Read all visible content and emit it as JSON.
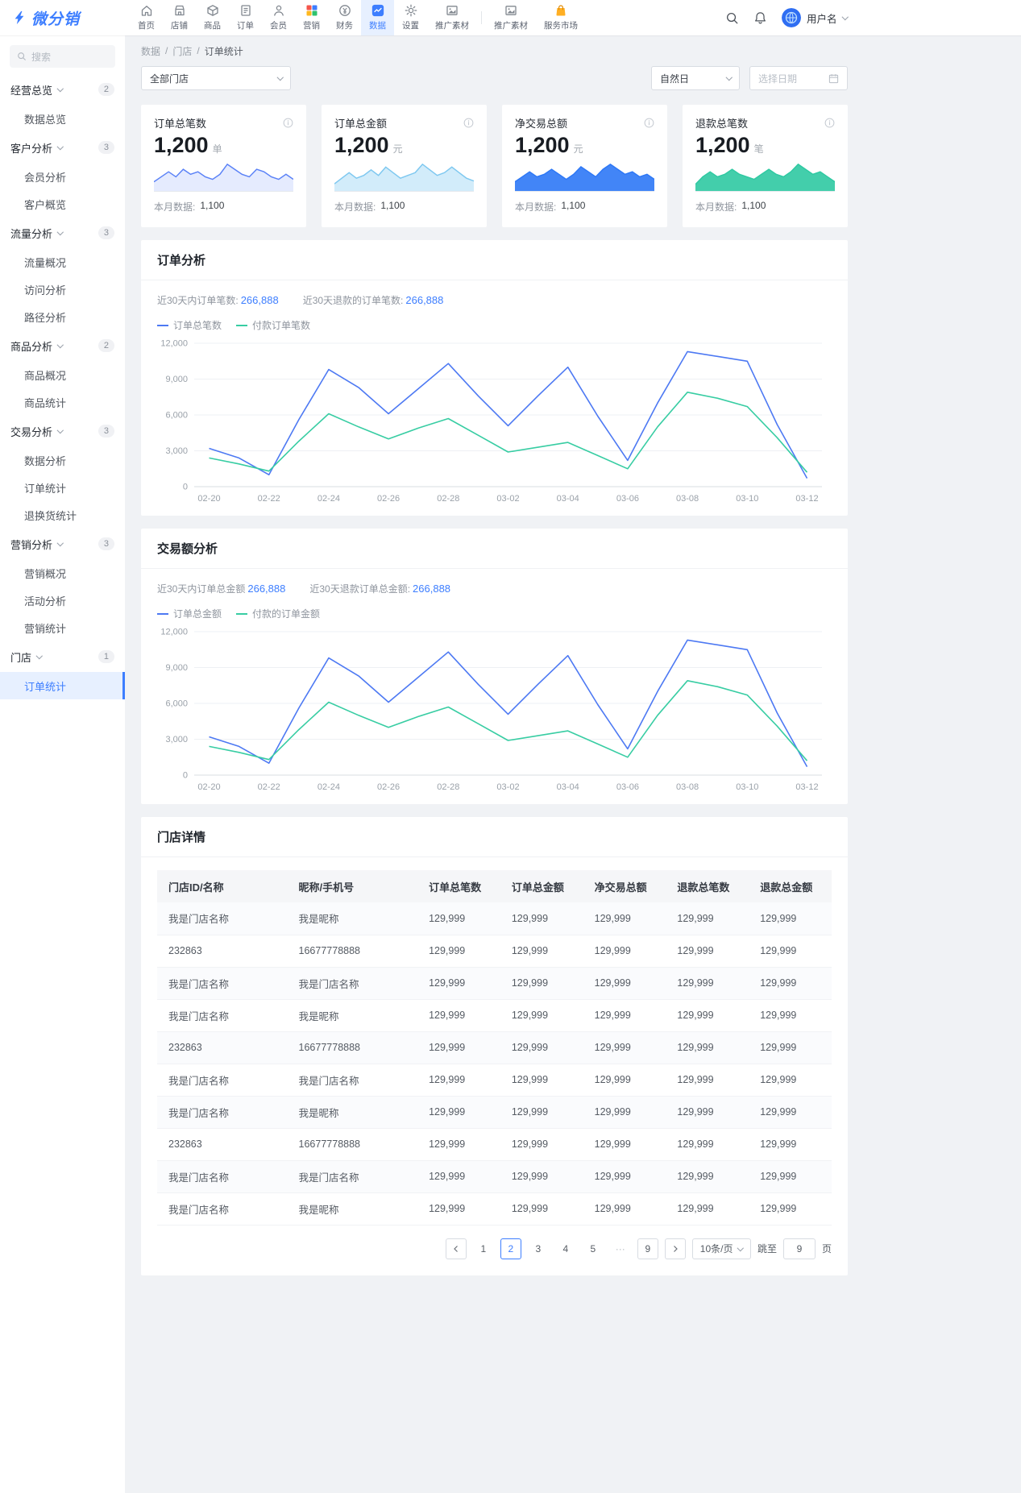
{
  "brand": {
    "logo_text": "微分销"
  },
  "colors": {
    "primary": "#3d7eff",
    "green": "#38cda3",
    "bg": "#f0f2f5"
  },
  "topnav": {
    "items": [
      {
        "id": "home",
        "label": "首页"
      },
      {
        "id": "shop",
        "label": "店铺"
      },
      {
        "id": "goods",
        "label": "商品"
      },
      {
        "id": "order",
        "label": "订单"
      },
      {
        "id": "member",
        "label": "会员"
      },
      {
        "id": "marketing",
        "label": "营销"
      },
      {
        "id": "finance",
        "label": "财务"
      },
      {
        "id": "data",
        "label": "数据",
        "active": true
      },
      {
        "id": "settings",
        "label": "设置"
      },
      {
        "id": "promo",
        "label": "推广素材"
      },
      {
        "id": "divider",
        "divider": true
      },
      {
        "id": "promo2",
        "label": "推广素材"
      },
      {
        "id": "market",
        "label": "服务市场"
      }
    ],
    "username": "用户名"
  },
  "sidebar": {
    "search_placeholder": "搜索",
    "groups": [
      {
        "label": "经营总览",
        "badge": "2",
        "items": [
          "数据总览"
        ]
      },
      {
        "label": "客户分析",
        "badge": "3",
        "items": [
          "会员分析",
          "客户概览"
        ]
      },
      {
        "label": "流量分析",
        "badge": "3",
        "items": [
          "流量概况",
          "访问分析",
          "路径分析"
        ]
      },
      {
        "label": "商品分析",
        "badge": "2",
        "items": [
          "商品概况",
          "商品统计"
        ]
      },
      {
        "label": "交易分析",
        "badge": "3",
        "items": [
          "数据分析",
          "订单统计",
          "退换货统计"
        ]
      },
      {
        "label": "营销分析",
        "badge": "3",
        "items": [
          "营销概况",
          "活动分析",
          "营销统计"
        ]
      },
      {
        "label": "门店",
        "badge": "1",
        "items": [
          "订单统计"
        ],
        "active_item": "订单统计"
      }
    ]
  },
  "breadcrumb": {
    "items": [
      "数据",
      "门店"
    ],
    "current": "订单统计",
    "separator": "/"
  },
  "filters": {
    "store": "全部门店",
    "period": "自然日",
    "date_placeholder": "选择日期"
  },
  "stat_cards": [
    {
      "title": "订单总笔数",
      "value": "1,200",
      "unit": "单",
      "footer_label": "本月数据:",
      "footer_value": "1,100",
      "color": "#5b82f7",
      "fill_opacity": 0.16,
      "spark": [
        3,
        5,
        7,
        5,
        8,
        6,
        7,
        5,
        4,
        6,
        10,
        8,
        6,
        5,
        8,
        7,
        5,
        4,
        6,
        4
      ]
    },
    {
      "title": "订单总金额",
      "value": "1,200",
      "unit": "元",
      "footer_label": "本月数据:",
      "footer_value": "1,100",
      "color": "#7ec8f0",
      "fill_opacity": 0.35,
      "spark": [
        2,
        4,
        6,
        4,
        5,
        7,
        5,
        8,
        6,
        4,
        5,
        6,
        9,
        7,
        5,
        6,
        8,
        6,
        4,
        3
      ]
    },
    {
      "title": "净交易总额",
      "value": "1,200",
      "unit": "元",
      "footer_label": "本月数据:",
      "footer_value": "1,100",
      "color": "#2e78f6",
      "fill_opacity": 0.9,
      "spark": [
        3,
        5,
        7,
        5,
        6,
        8,
        6,
        4,
        6,
        9,
        7,
        5,
        8,
        10,
        8,
        6,
        7,
        5,
        6,
        4
      ]
    },
    {
      "title": "退款总笔数",
      "value": "1,200",
      "unit": "笔",
      "footer_label": "本月数据:",
      "footer_value": "1,100",
      "color": "#2fc9a2",
      "fill_opacity": 0.9,
      "spark": [
        2,
        5,
        7,
        5,
        6,
        8,
        6,
        5,
        4,
        6,
        8,
        6,
        5,
        7,
        10,
        8,
        6,
        7,
        5,
        3
      ]
    }
  ],
  "chart_data": [
    {
      "type": "line",
      "title": "订单分析",
      "stat1_label": "近30天内订单笔数:",
      "stat1_value": "266,888",
      "stat2_label": "近30天退款的订单笔数:",
      "stat2_value": "266,888",
      "x_days": [
        "02-20",
        "02-21",
        "02-22",
        "02-23",
        "02-24",
        "02-25",
        "02-26",
        "02-27",
        "02-28",
        "03-01",
        "03-02",
        "03-03",
        "03-04",
        "03-05",
        "03-06",
        "03-07",
        "03-08",
        "03-09",
        "03-10",
        "03-11",
        "03-12"
      ],
      "x_ticks": [
        "02-20",
        "02-22",
        "02-24",
        "02-26",
        "02-28",
        "03-02",
        "03-04",
        "03-06",
        "03-08",
        "03-10",
        "03-12"
      ],
      "ylim": [
        0,
        12000
      ],
      "y_ticks": [
        0,
        3000,
        6000,
        9000,
        12000
      ],
      "grid": true,
      "legend_position": "top-left",
      "series": [
        {
          "name": "订单总笔数",
          "color": "#4d79f3",
          "values": [
            3200,
            2400,
            1000,
            5600,
            9800,
            8300,
            6100,
            8200,
            10300,
            7600,
            5100,
            7600,
            10000,
            5900,
            2200,
            7000,
            11300,
            10900,
            10500,
            5200,
            700
          ]
        },
        {
          "name": "付款订单笔数",
          "color": "#38cda3",
          "values": [
            2400,
            1900,
            1300,
            3800,
            6100,
            5000,
            4000,
            4900,
            5700,
            4300,
            2900,
            3300,
            3700,
            2600,
            1500,
            5000,
            7900,
            7400,
            6700,
            4100,
            1200
          ]
        }
      ]
    },
    {
      "type": "line",
      "title": "交易额分析",
      "stat1_label": "近30天内订单总金额",
      "stat1_value": "266,888",
      "stat2_label": "近30天退款订单总金额:",
      "stat2_value": "266,888",
      "x_days": [
        "02-20",
        "02-21",
        "02-22",
        "02-23",
        "02-24",
        "02-25",
        "02-26",
        "02-27",
        "02-28",
        "03-01",
        "03-02",
        "03-03",
        "03-04",
        "03-05",
        "03-06",
        "03-07",
        "03-08",
        "03-09",
        "03-10",
        "03-11",
        "03-12"
      ],
      "x_ticks": [
        "02-20",
        "02-22",
        "02-24",
        "02-26",
        "02-28",
        "03-02",
        "03-04",
        "03-06",
        "03-08",
        "03-10",
        "03-12"
      ],
      "ylim": [
        0,
        12000
      ],
      "y_ticks": [
        0,
        3000,
        6000,
        9000,
        12000
      ],
      "grid": true,
      "legend_position": "top-left",
      "series": [
        {
          "name": "订单总金额",
          "color": "#4d79f3",
          "values": [
            3200,
            2400,
            1000,
            5600,
            9800,
            8300,
            6100,
            8200,
            10300,
            7600,
            5100,
            7600,
            10000,
            5900,
            2200,
            7000,
            11300,
            10900,
            10500,
            5200,
            700
          ]
        },
        {
          "name": "付款的订单金额",
          "color": "#38cda3",
          "values": [
            2400,
            1900,
            1300,
            3800,
            6100,
            5000,
            4000,
            4900,
            5700,
            4300,
            2900,
            3300,
            3700,
            2600,
            1500,
            5000,
            7900,
            7400,
            6700,
            4100,
            1200
          ]
        }
      ]
    }
  ],
  "store_table": {
    "title": "门店详情",
    "columns": [
      "门店ID/名称",
      "昵称/手机号",
      "订单总笔数",
      "订单总金额",
      "净交易总额",
      "退款总笔数",
      "退款总金额"
    ],
    "rows": [
      [
        "我是门店名称",
        "我是昵称",
        "129,999",
        "129,999",
        "129,999",
        "129,999",
        "129,999"
      ],
      [
        "232863",
        "16677778888",
        "129,999",
        "129,999",
        "129,999",
        "129,999",
        "129,999"
      ],
      [
        "我是门店名称",
        "我是门店名称",
        "129,999",
        "129,999",
        "129,999",
        "129,999",
        "129,999"
      ],
      [
        "我是门店名称",
        "我是昵称",
        "129,999",
        "129,999",
        "129,999",
        "129,999",
        "129,999"
      ],
      [
        "232863",
        "16677778888",
        "129,999",
        "129,999",
        "129,999",
        "129,999",
        "129,999"
      ],
      [
        "我是门店名称",
        "我是门店名称",
        "129,999",
        "129,999",
        "129,999",
        "129,999",
        "129,999"
      ],
      [
        "我是门店名称",
        "我是昵称",
        "129,999",
        "129,999",
        "129,999",
        "129,999",
        "129,999"
      ],
      [
        "232863",
        "16677778888",
        "129,999",
        "129,999",
        "129,999",
        "129,999",
        "129,999"
      ],
      [
        "我是门店名称",
        "我是门店名称",
        "129,999",
        "129,999",
        "129,999",
        "129,999",
        "129,999"
      ],
      [
        "我是门店名称",
        "我是昵称",
        "129,999",
        "129,999",
        "129,999",
        "129,999",
        "129,999"
      ]
    ]
  },
  "pagination": {
    "pages": [
      {
        "label": "1"
      },
      {
        "label": "2",
        "active": true
      },
      {
        "label": "3"
      },
      {
        "label": "4"
      },
      {
        "label": "5"
      },
      {
        "label": "···",
        "ellipsis": true
      },
      {
        "label": "9",
        "boxed": true
      }
    ],
    "page_size": "10条/页",
    "jump_label": "跳至",
    "jump_value": "9",
    "jump_suffix": "页"
  }
}
